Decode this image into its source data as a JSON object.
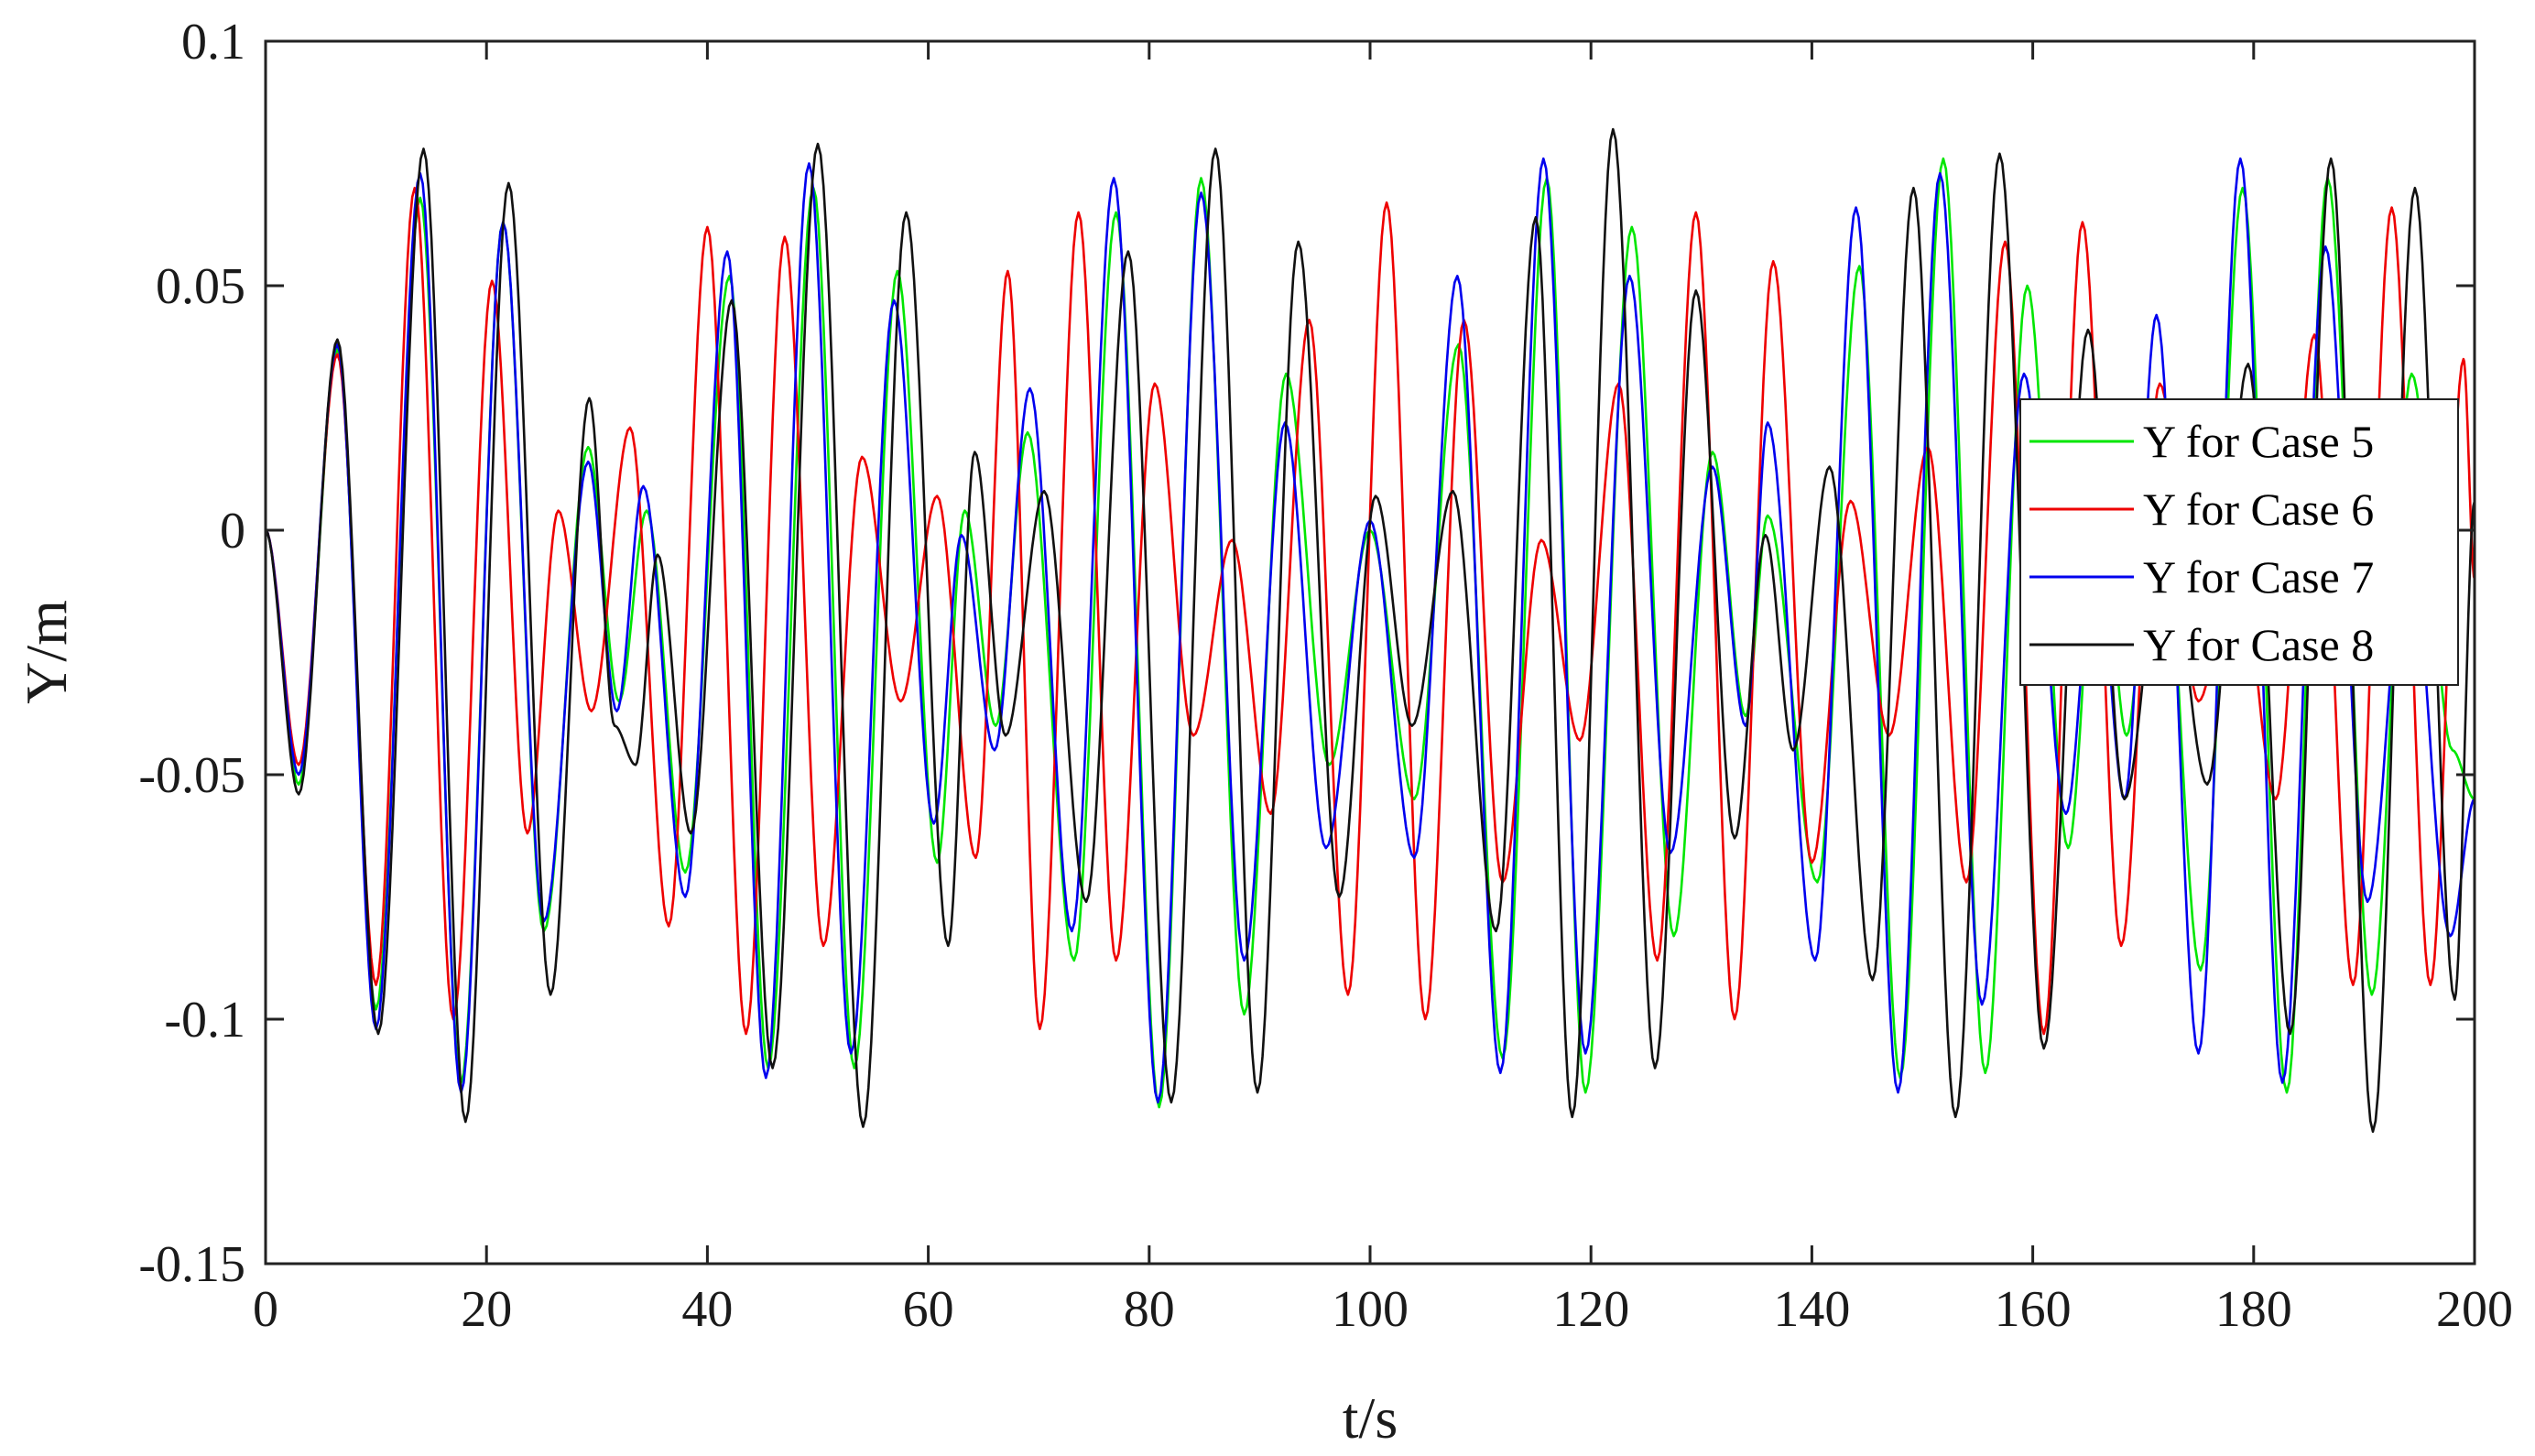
{
  "chart_data": {
    "type": "line",
    "title": "",
    "xlabel": "t/s",
    "ylabel": "Y/m",
    "xlim": [
      0,
      200
    ],
    "ylim": [
      -0.15,
      0.1
    ],
    "xticks": [
      0,
      20,
      40,
      60,
      80,
      100,
      120,
      140,
      160,
      180,
      200
    ],
    "xtick_labels": [
      "0",
      "20",
      "40",
      "60",
      "80",
      "100",
      "120",
      "140",
      "160",
      "180",
      "200"
    ],
    "yticks": [
      -0.15,
      -0.1,
      -0.05,
      0,
      0.05,
      0.1
    ],
    "ytick_labels": [
      "-0.15",
      "-0.1",
      "-0.05",
      "0",
      "0.05",
      "0.1"
    ],
    "grid": false,
    "legend_position": "right",
    "series": [
      {
        "name": "Y for Case 5",
        "color": "#00e600",
        "x": [
          0,
          3,
          6.5,
          10,
          14,
          17.7,
          21.5,
          25.2,
          29.2,
          32,
          34.5,
          38,
          42,
          45.5,
          49.6,
          53.3,
          57.2,
          60.8,
          63.3,
          66.1,
          69,
          73.2,
          77,
          80.9,
          84.7,
          88.6,
          92.4,
          96.3,
          100,
          104,
          108,
          112,
          116,
          119.5,
          123.7,
          127.5,
          131,
          134,
          136,
          140.5,
          144.3,
          148,
          151.9,
          155.7,
          159.5,
          163.2,
          166,
          168.5,
          171.3,
          175.2,
          179,
          183,
          186.7,
          190.7,
          194.3,
          198,
          200
        ],
        "y": [
          0,
          -0.052,
          0.037,
          -0.098,
          0.068,
          -0.113,
          0.063,
          -0.082,
          0.017,
          -0.035,
          0.004,
          -0.07,
          0.052,
          -0.11,
          0.07,
          -0.11,
          0.053,
          -0.068,
          0.004,
          -0.04,
          0.02,
          -0.088,
          0.065,
          -0.118,
          0.072,
          -0.099,
          0.032,
          -0.048,
          0.0,
          -0.055,
          0.038,
          -0.108,
          0.072,
          -0.115,
          0.062,
          -0.083,
          0.016,
          -0.038,
          0.003,
          -0.072,
          0.054,
          -0.112,
          0.076,
          -0.111,
          0.05,
          -0.065,
          0.008,
          -0.042,
          0.022,
          -0.09,
          0.07,
          -0.115,
          0.072,
          -0.095,
          0.032,
          -0.045,
          -0.055
        ]
      },
      {
        "name": "Y for Case 6",
        "color": "#ee0000",
        "x": [
          0,
          3,
          6.5,
          10,
          13.5,
          17,
          20.5,
          23.7,
          26.5,
          29.5,
          33,
          36.5,
          40,
          43.5,
          47,
          50.5,
          54,
          57.5,
          60.8,
          64.3,
          67.2,
          70.1,
          73.6,
          77,
          80.5,
          84,
          87.5,
          91,
          94.5,
          98,
          101.5,
          105,
          108.5,
          112,
          115.5,
          119,
          122.5,
          126,
          129.5,
          133,
          136.5,
          140,
          143.5,
          147,
          150.5,
          154,
          157.5,
          161,
          164.5,
          168,
          171.5,
          175,
          178.5,
          182,
          185.5,
          189,
          192.5,
          196,
          199,
          200
        ],
        "y": [
          0,
          -0.048,
          0.036,
          -0.093,
          0.07,
          -0.1,
          0.051,
          -0.062,
          0.004,
          -0.037,
          0.021,
          -0.081,
          0.062,
          -0.103,
          0.06,
          -0.085,
          0.015,
          -0.035,
          0.007,
          -0.067,
          0.053,
          -0.102,
          0.065,
          -0.088,
          0.03,
          -0.042,
          -0.002,
          -0.058,
          0.043,
          -0.095,
          0.067,
          -0.1,
          0.043,
          -0.072,
          -0.002,
          -0.043,
          0.03,
          -0.088,
          0.065,
          -0.1,
          0.055,
          -0.068,
          0.006,
          -0.042,
          0.017,
          -0.072,
          0.059,
          -0.103,
          0.063,
          -0.085,
          0.03,
          -0.035,
          -0.002,
          -0.055,
          0.04,
          -0.093,
          0.066,
          -0.093,
          0.035,
          -0.01
        ]
      },
      {
        "name": "Y for Case 7",
        "color": "#0000ee",
        "x": [
          0,
          3,
          6.5,
          10,
          14,
          17.7,
          21.5,
          25.2,
          29.2,
          31.8,
          34.2,
          38,
          41.8,
          45.3,
          49.2,
          53,
          56.9,
          60.5,
          63,
          66,
          69.2,
          73,
          76.8,
          80.8,
          84.7,
          88.6,
          92.3,
          96,
          100,
          104,
          107.9,
          111.8,
          115.7,
          119.5,
          123.5,
          127.2,
          131,
          134,
          136,
          140.3,
          144,
          147.8,
          151.6,
          155.4,
          159.2,
          163,
          165.7,
          168.3,
          171.2,
          175,
          178.8,
          182.6,
          186.5,
          190.3,
          194,
          197.8,
          200
        ],
        "y": [
          0,
          -0.05,
          0.038,
          -0.102,
          0.073,
          -0.115,
          0.063,
          -0.08,
          0.014,
          -0.037,
          0.009,
          -0.075,
          0.057,
          -0.112,
          0.075,
          -0.107,
          0.047,
          -0.06,
          -0.001,
          -0.045,
          0.029,
          -0.082,
          0.072,
          -0.117,
          0.069,
          -0.088,
          0.022,
          -0.065,
          0.002,
          -0.067,
          0.052,
          -0.111,
          0.076,
          -0.107,
          0.052,
          -0.066,
          0.013,
          -0.04,
          0.022,
          -0.088,
          0.066,
          -0.115,
          0.073,
          -0.097,
          0.032,
          -0.058,
          -0.002,
          -0.055,
          0.044,
          -0.107,
          0.076,
          -0.113,
          0.058,
          -0.076,
          0.002,
          -0.083,
          -0.055
        ]
      },
      {
        "name": "Y for Case 8",
        "color": "#111111",
        "x": [
          0,
          3,
          6.5,
          10.2,
          14.3,
          18.1,
          22,
          25.8,
          29.3,
          31.6,
          33.5,
          35.5,
          38.5,
          42.2,
          45.9,
          50,
          54.1,
          58,
          61.8,
          64.2,
          67,
          70.5,
          74.3,
          78.1,
          82,
          86,
          89.8,
          93.5,
          97.2,
          100.5,
          103.8,
          107.5,
          111.4,
          115,
          118.3,
          122,
          125.8,
          129.5,
          133,
          135.8,
          138.3,
          141.6,
          145.5,
          149.2,
          153,
          157,
          161,
          165,
          168.3,
          172,
          175.8,
          179.5,
          183.3,
          187,
          190.8,
          194.6,
          198.2,
          200
        ],
        "y": [
          0,
          -0.054,
          0.039,
          -0.103,
          0.078,
          -0.121,
          0.071,
          -0.095,
          0.027,
          -0.04,
          -0.048,
          -0.005,
          -0.062,
          0.047,
          -0.11,
          0.079,
          -0.122,
          0.065,
          -0.085,
          0.016,
          -0.042,
          0.008,
          -0.076,
          0.057,
          -0.117,
          0.078,
          -0.115,
          0.059,
          -0.075,
          0.007,
          -0.04,
          0.008,
          -0.082,
          0.064,
          -0.12,
          0.082,
          -0.11,
          0.049,
          -0.063,
          -0.001,
          -0.045,
          0.013,
          -0.092,
          0.07,
          -0.12,
          0.077,
          -0.106,
          0.041,
          -0.055,
          0.002,
          -0.052,
          0.034,
          -0.103,
          0.076,
          -0.123,
          0.07,
          -0.096,
          0.006
        ]
      }
    ]
  }
}
